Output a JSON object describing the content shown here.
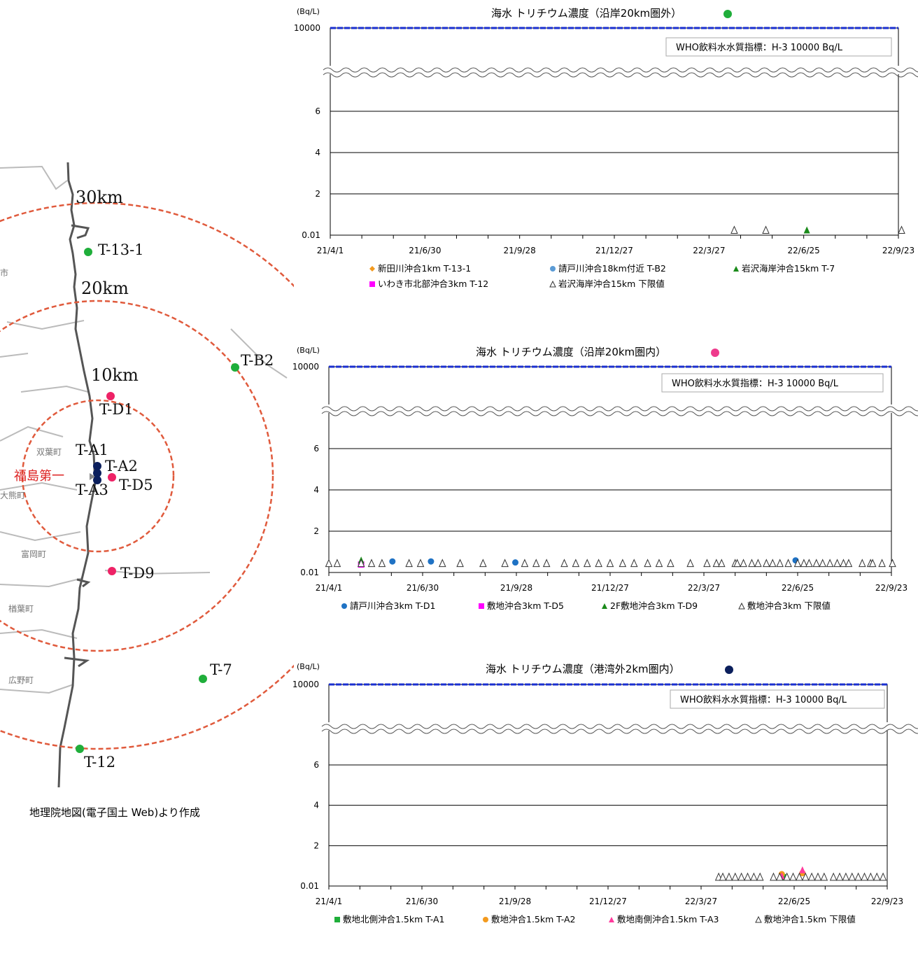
{
  "map": {
    "credit": "地理院地図(電子国土 Web)より作成",
    "rings": [
      "30km",
      "20km",
      "10km"
    ],
    "plant": "福島第一",
    "towns": [
      "双葉町",
      "大熊町",
      "富岡町",
      "楢葉町",
      "広野町",
      "市"
    ],
    "stations": [
      {
        "label": "T-13-1",
        "color": "#1fae3a"
      },
      {
        "label": "T-B2",
        "color": "#1fae3a"
      },
      {
        "label": "T-D1",
        "color": "#ee2266"
      },
      {
        "label": "T-A1",
        "color": "#0b1f5c"
      },
      {
        "label": "T-A2",
        "color": "#0b1f5c"
      },
      {
        "label": "T-A3",
        "color": "#0b1f5c"
      },
      {
        "label": "T-D5",
        "color": "#ee2266"
      },
      {
        "label": "T-D9",
        "color": "#ee2266"
      },
      {
        "label": "T-7",
        "color": "#1fae3a"
      },
      {
        "label": "T-12",
        "color": "#1fae3a"
      }
    ]
  },
  "chart_data": [
    {
      "type": "scatter",
      "title": "海水 トリチウム濃度（沿岸20km圏外）",
      "title_marker_color": "#1fae3a",
      "ylabel": "(Bq/L)",
      "yticks": [
        "0.01",
        "2",
        "4",
        "6",
        "10000"
      ],
      "xticks": [
        "21/4/1",
        "21/6/30",
        "21/9/28",
        "21/12/27",
        "22/3/27",
        "22/6/25",
        "22/9/23"
      ],
      "reference": {
        "label": "WHO飲料水水質指標：H-3 10000 Bq/L",
        "value": 10000
      },
      "series": [
        {
          "name": "新田川沖合1km T-13-1",
          "marker": "diamond",
          "color": "#f39a1e",
          "points": []
        },
        {
          "name": "請戸川沖合18km付近 T-B2",
          "marker": "circle",
          "color": "#5b9bd5",
          "points": []
        },
        {
          "name": "岩沢海岸沖合15km T-7",
          "marker": "triangle",
          "color": "#1a8a1a",
          "points": [
            [
              "22/6/28",
              0.1
            ]
          ]
        },
        {
          "name": "いわき市北部沖合3km T-12",
          "marker": "square",
          "color": "#ff00ff",
          "points": []
        },
        {
          "name": "岩沢海岸沖合15km 下限値",
          "marker": "triangle-open",
          "color": "#333333",
          "points": [
            [
              "22/4/20",
              0.1
            ],
            [
              "22/5/20",
              0.1
            ],
            [
              "22/9/26",
              0.1
            ]
          ]
        }
      ]
    },
    {
      "type": "scatter",
      "title": "海水 トリチウム濃度（沿岸20km圏内）",
      "title_marker_color": "#ee3a8c",
      "ylabel": "(Bq/L)",
      "yticks": [
        "0.01",
        "2",
        "4",
        "6",
        "10000"
      ],
      "xticks": [
        "21/4/1",
        "21/6/30",
        "21/9/28",
        "21/12/27",
        "22/3/27",
        "22/6/25",
        "22/9/23"
      ],
      "reference": {
        "label": "WHO飲料水水質指標：H-3 10000 Bq/L",
        "value": 10000
      },
      "series": [
        {
          "name": "請戸川沖合3km T-D1",
          "marker": "circle",
          "color": "#1f72c4",
          "points": [
            [
              "21/6/1",
              0.4
            ],
            [
              "21/7/8",
              0.4
            ],
            [
              "21/9/27",
              0.35
            ],
            [
              "22/6/23",
              0.45
            ]
          ]
        },
        {
          "name": "敷地沖合3km T-D5",
          "marker": "square",
          "color": "#ff00ff",
          "points": [
            [
              "21/5/2",
              0.25
            ]
          ]
        },
        {
          "name": "2F敷地沖合3km T-D9",
          "marker": "triangle",
          "color": "#1a8a1a",
          "points": [
            [
              "21/5/2",
              0.45
            ]
          ]
        },
        {
          "name": "敷地沖合3km 下限値",
          "marker": "triangle-open",
          "color": "#333333",
          "points": [
            [
              "21/4/1",
              0.3
            ],
            [
              "21/4/9",
              0.3
            ],
            [
              "21/5/2",
              0.3
            ],
            [
              "21/5/12",
              0.3
            ],
            [
              "21/5/22",
              0.3
            ],
            [
              "21/6/17",
              0.3
            ],
            [
              "21/6/28",
              0.3
            ],
            [
              "21/7/19",
              0.3
            ],
            [
              "21/8/5",
              0.3
            ],
            [
              "21/8/27",
              0.3
            ],
            [
              "21/9/17",
              0.3
            ],
            [
              "21/10/6",
              0.3
            ],
            [
              "21/10/17",
              0.3
            ],
            [
              "21/10/27",
              0.3
            ],
            [
              "21/11/13",
              0.3
            ],
            [
              "21/11/24",
              0.3
            ],
            [
              "21/12/5",
              0.3
            ],
            [
              "21/12/16",
              0.3
            ],
            [
              "21/12/27",
              0.3
            ],
            [
              "22/1/8",
              0.3
            ],
            [
              "22/1/19",
              0.3
            ],
            [
              "22/2/1",
              0.3
            ],
            [
              "22/2/12",
              0.3
            ],
            [
              "22/2/23",
              0.3
            ],
            [
              "22/3/14",
              0.3
            ],
            [
              "22/3/30",
              0.3
            ],
            [
              "22/4/8",
              0.3
            ],
            [
              "22/4/13",
              0.3
            ],
            [
              "22/4/26",
              0.3
            ],
            [
              "22/4/28",
              0.3
            ],
            [
              "22/5/4",
              0.3
            ],
            [
              "22/5/12",
              0.3
            ],
            [
              "22/5/18",
              0.3
            ],
            [
              "22/5/26",
              0.3
            ],
            [
              "22/6/1",
              0.3
            ],
            [
              "22/6/8",
              0.3
            ],
            [
              "22/6/16",
              0.3
            ],
            [
              "22/6/25",
              0.3
            ],
            [
              "22/7/1",
              0.3
            ],
            [
              "22/7/6",
              0.3
            ],
            [
              "22/7/13",
              0.3
            ],
            [
              "22/7/19",
              0.3
            ],
            [
              "22/7/26",
              0.3
            ],
            [
              "22/8/2",
              0.3
            ],
            [
              "22/8/8",
              0.3
            ],
            [
              "22/8/13",
              0.3
            ],
            [
              "22/8/26",
              0.3
            ],
            [
              "22/9/3",
              0.3
            ],
            [
              "22/9/5",
              0.3
            ],
            [
              "22/9/14",
              0.3
            ],
            [
              "22/9/24",
              0.3
            ]
          ]
        }
      ]
    },
    {
      "type": "scatter",
      "title": "海水 トリチウム濃度（港湾外2km圏内）",
      "title_marker_color": "#0b1f5c",
      "ylabel": "(Bq/L)",
      "yticks": [
        "0.01",
        "2",
        "4",
        "6",
        "10000"
      ],
      "xticks": [
        "21/4/1",
        "21/6/30",
        "21/9/28",
        "21/12/27",
        "22/3/27",
        "22/6/25",
        "22/9/23"
      ],
      "reference": {
        "label": "WHO飲料水水質指標：H-3 10000 Bq/L",
        "value": 10000
      },
      "series": [
        {
          "name": "敷地北側沖合1.5km T-A1",
          "marker": "square",
          "color": "#1fae3a",
          "points": [
            [
              "22/6/14",
              0.3
            ]
          ]
        },
        {
          "name": "敷地沖合1.5km T-A2",
          "marker": "circle",
          "color": "#f39a1e",
          "points": [
            [
              "22/6/13",
              0.45
            ],
            [
              "22/7/3",
              0.5
            ]
          ]
        },
        {
          "name": "敷地南側沖合1.5km T-A3",
          "marker": "triangle",
          "color": "#ff3a9c",
          "points": [
            [
              "22/6/13",
              0.35
            ],
            [
              "22/7/3",
              0.65
            ]
          ]
        },
        {
          "name": "敷地沖合1.5km 下限値",
          "marker": "triangle-open",
          "color": "#333333",
          "points": [
            [
              "22/4/13",
              0.3
            ],
            [
              "22/4/17",
              0.3
            ],
            [
              "22/4/23",
              0.3
            ],
            [
              "22/4/29",
              0.3
            ],
            [
              "22/5/5",
              0.3
            ],
            [
              "22/5/11",
              0.3
            ],
            [
              "22/5/17",
              0.3
            ],
            [
              "22/5/23",
              0.3
            ],
            [
              "22/6/5",
              0.3
            ],
            [
              "22/6/11",
              0.3
            ],
            [
              "22/6/18",
              0.3
            ],
            [
              "22/6/24",
              0.3
            ],
            [
              "22/6/30",
              0.3
            ],
            [
              "22/7/6",
              0.3
            ],
            [
              "22/7/12",
              0.3
            ],
            [
              "22/7/18",
              0.3
            ],
            [
              "22/7/24",
              0.3
            ],
            [
              "22/8/2",
              0.3
            ],
            [
              "22/8/8",
              0.3
            ],
            [
              "22/8/14",
              0.3
            ],
            [
              "22/8/20",
              0.3
            ],
            [
              "22/8/26",
              0.3
            ],
            [
              "22/9/1",
              0.3
            ],
            [
              "22/9/7",
              0.3
            ],
            [
              "22/9/13",
              0.3
            ],
            [
              "22/9/19",
              0.3
            ]
          ]
        }
      ]
    }
  ]
}
